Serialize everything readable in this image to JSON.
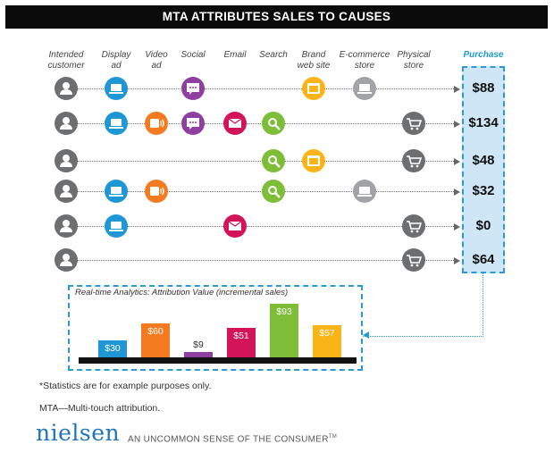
{
  "title": "MTA ATTRIBUTES SALES TO CAUSES",
  "columns": [
    {
      "line1": "Intended",
      "line2": "customer"
    },
    {
      "line1": "Display",
      "line2": "ad"
    },
    {
      "line1": "Video",
      "line2": "ad"
    },
    {
      "line1": "Social",
      "line2": ""
    },
    {
      "line1": "Email",
      "line2": ""
    },
    {
      "line1": "Search",
      "line2": ""
    },
    {
      "line1": "Brand",
      "line2": "web site"
    },
    {
      "line1": "E-commerce",
      "line2": "store"
    },
    {
      "line1": "Physical",
      "line2": "store"
    },
    {
      "line1": "Purchase",
      "line2": ""
    }
  ],
  "touchpoint_colors": {
    "customer": "#6d6e70",
    "display": "#1e97d4",
    "video": "#f47a20",
    "social": "#8e3fa0",
    "email": "#d4145a",
    "search": "#7dbd37",
    "brand": "#fbb418",
    "ecommerce": "#a1a3a6",
    "physical": "#6d6e70"
  },
  "touchpoint_icons": {
    "customer": "person-icon",
    "display": "laptop-icon",
    "video": "video-icon",
    "social": "chat-bubble-icon",
    "email": "envelope-icon",
    "search": "magnifier-icon",
    "brand": "browser-window-icon",
    "ecommerce": "laptop-icon",
    "physical": "shopping-cart-icon"
  },
  "paths": [
    {
      "touchpoints": [
        "customer",
        "display",
        "social",
        "brand",
        "ecommerce"
      ],
      "purchase": "$88"
    },
    {
      "touchpoints": [
        "customer",
        "display",
        "video",
        "social",
        "email",
        "search",
        "physical"
      ],
      "purchase": "$134"
    },
    {
      "touchpoints": [
        "customer",
        "search",
        "brand",
        "physical"
      ],
      "purchase": "$48"
    },
    {
      "touchpoints": [
        "customer",
        "display",
        "video",
        "search",
        "ecommerce"
      ],
      "purchase": "$32"
    },
    {
      "touchpoints": [
        "customer",
        "display",
        "email",
        "physical"
      ],
      "purchase": "$0"
    },
    {
      "touchpoints": [
        "customer",
        "physical"
      ],
      "purchase": "$64"
    }
  ],
  "chart_data": {
    "type": "bar",
    "title": "Real-time Analytics: Attribution Value (incremental sales)",
    "categories": [
      "Display ad",
      "Video ad",
      "Social",
      "Email",
      "Search",
      "Brand web site"
    ],
    "values": [
      30,
      60,
      9,
      51,
      93,
      57
    ],
    "value_labels": [
      "$30",
      "$60",
      "$9",
      "$51",
      "$93",
      "$57"
    ],
    "colors": [
      "#1e97d4",
      "#f47a20",
      "#8e3fa0",
      "#d4145a",
      "#7dbd37",
      "#fbb418"
    ],
    "ylim": [
      0,
      100
    ],
    "xlabel": "",
    "ylabel": ""
  },
  "footnotes": {
    "stats": "*Statistics are for example purposes only.",
    "mta": "MTA—Multi-touch attribution."
  },
  "brand": {
    "logo": "nielsen",
    "tagline": "AN UNCOMMON SENSE OF THE CONSUMER",
    "trademark": "TM"
  }
}
